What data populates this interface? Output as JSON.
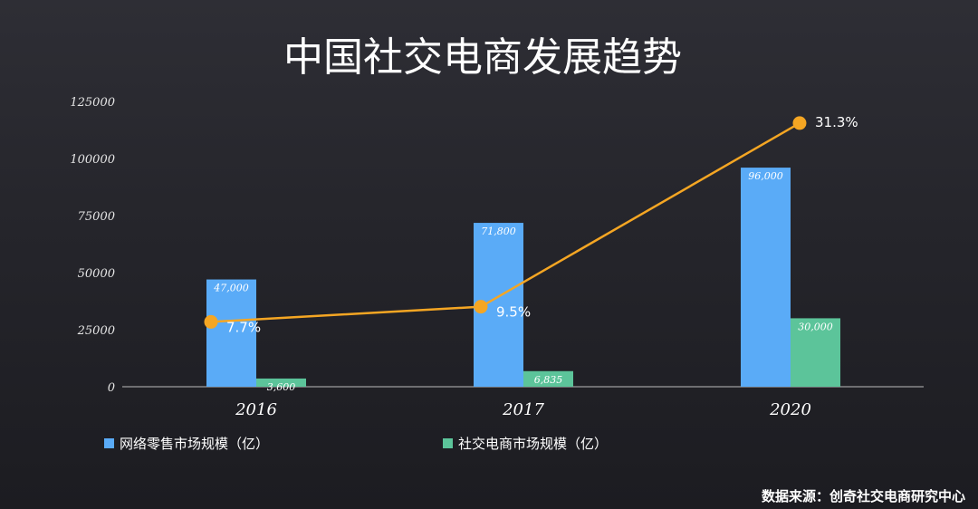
{
  "chart_data": {
    "type": "bar",
    "title": "中国社交电商发展趋势",
    "categories": [
      "2016",
      "2017",
      "2020"
    ],
    "ylim": [
      0,
      125000
    ],
    "yticks": [
      0,
      25000,
      50000,
      75000,
      100000,
      125000
    ],
    "grid": false,
    "legend_position": "bottom-left",
    "series": [
      {
        "name": "网络零售市场规模（亿）",
        "values": [
          47000,
          71800,
          96000
        ],
        "labels": [
          "47,000",
          "71,800",
          "96,000"
        ],
        "color": "#5aabf7"
      },
      {
        "name": "社交电商市场规模（亿）",
        "values": [
          3600,
          6835,
          30000
        ],
        "labels": [
          "3,600",
          "6,835",
          "30,000"
        ],
        "color": "#5cc49a"
      }
    ],
    "line_series": {
      "values": [
        7.7,
        9.5,
        31.3
      ],
      "labels": [
        "7.7%",
        "9.5%",
        "31.3%"
      ],
      "color": "#f5a623"
    },
    "source": "数据来源：创奇社交电商研究中心"
  }
}
